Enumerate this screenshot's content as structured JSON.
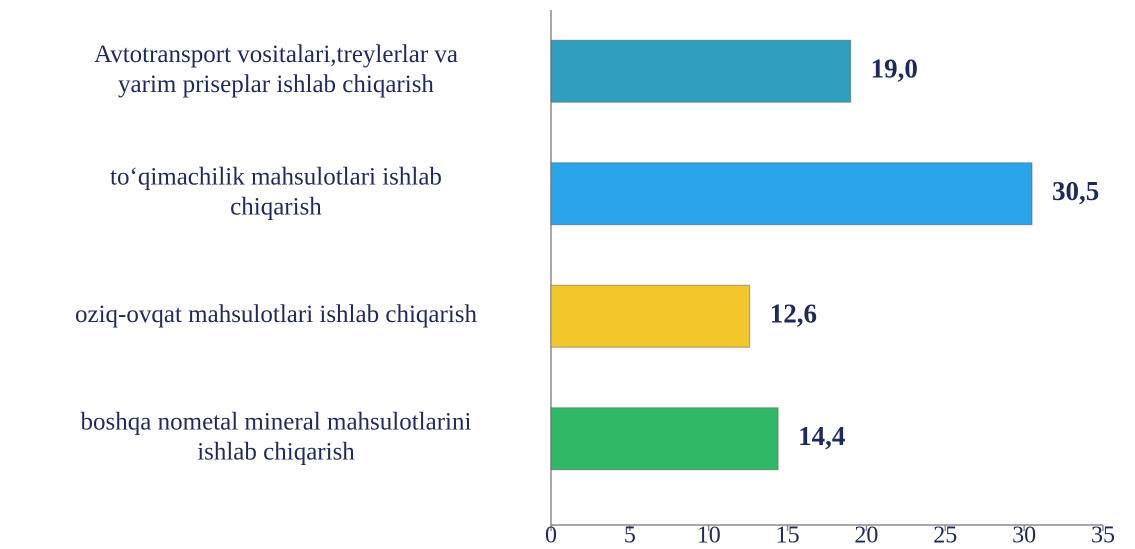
{
  "chart_data": {
    "type": "bar",
    "orientation": "horizontal",
    "categories": [
      [
        "Avtotransport vositalari,treylerlar va",
        "yarim priseplar ishlab chiqarish"
      ],
      [
        "to‘qimachilik  mahsulotlari ishlab",
        "chiqarish"
      ],
      [
        "oziq-ovqat mahsulotlari ishlab chiqarish"
      ],
      [
        "boshqa nometal mineral mahsulotlarini",
        "ishlab chiqarish"
      ]
    ],
    "values": [
      19.0,
      30.5,
      12.6,
      14.4
    ],
    "value_labels": [
      "19,0",
      "30,5",
      "12,6",
      "14,4"
    ],
    "colors": [
      "#2f9fbf",
      "#2ba4ea",
      "#f1c72c",
      "#2fb866"
    ],
    "xlim": [
      0,
      35
    ],
    "xticks": [
      0,
      5,
      10,
      15,
      20,
      25,
      30,
      35
    ]
  }
}
